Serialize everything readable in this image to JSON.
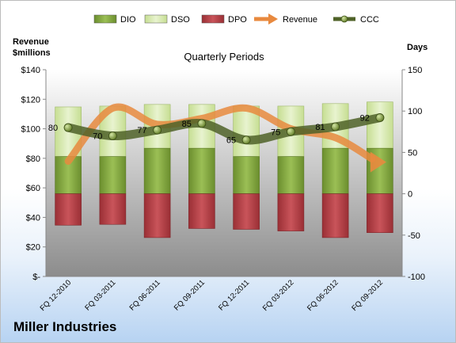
{
  "chart_data": {
    "type": "bar",
    "title": "Quarterly Periods",
    "company": "Miller Industries",
    "categories": [
      "FQ 12-2010",
      "FQ 03-2011",
      "FQ 06-2011",
      "FQ 09-2011",
      "FQ 12-2011",
      "FQ 03-2012",
      "FQ 06-2012",
      "FQ 09-2012"
    ],
    "left_axis": {
      "label_line1": "Revenue",
      "label_line2": "$millions",
      "ylim": [
        0,
        140
      ],
      "ticks": [
        {
          "v": 0,
          "t": "$-"
        },
        {
          "v": 20,
          "t": "$20"
        },
        {
          "v": 40,
          "t": "$40"
        },
        {
          "v": 60,
          "t": "$60"
        },
        {
          "v": 80,
          "t": "$80"
        },
        {
          "v": 100,
          "t": "$100"
        },
        {
          "v": 120,
          "t": "$120"
        },
        {
          "v": 140,
          "t": "$140"
        }
      ]
    },
    "right_axis": {
      "label": "Days",
      "ylim": [
        -100,
        150
      ],
      "ticks": [
        -100,
        -50,
        0,
        50,
        100,
        150
      ]
    },
    "series": [
      {
        "name": "DIO",
        "kind": "bar",
        "color": "#7fa33a",
        "values": [
          45,
          45,
          55,
          55,
          45,
          45,
          55,
          55
        ]
      },
      {
        "name": "DSO",
        "kind": "bar",
        "color": "#d7e9b0",
        "values": [
          105,
          106,
          108,
          108,
          106,
          106,
          109,
          111
        ]
      },
      {
        "name": "DPO",
        "kind": "bar",
        "color": "#b13a3f",
        "values": [
          -38,
          -37,
          -53,
          -42,
          -43,
          -45,
          -53,
          -47
        ]
      },
      {
        "name": "Revenue",
        "kind": "line",
        "color": "#e8893e",
        "values": [
          78,
          114,
          103,
          107,
          114,
          100,
          94,
          78
        ]
      },
      {
        "name": "CCC",
        "kind": "line",
        "color": "#4f6228",
        "values": [
          80,
          70,
          77,
          85,
          65,
          75,
          81,
          92
        ],
        "labels": [
          "80",
          "70",
          "77",
          "85",
          "65",
          "75",
          "81",
          "92"
        ]
      }
    ],
    "legend": "top",
    "grid": false
  }
}
